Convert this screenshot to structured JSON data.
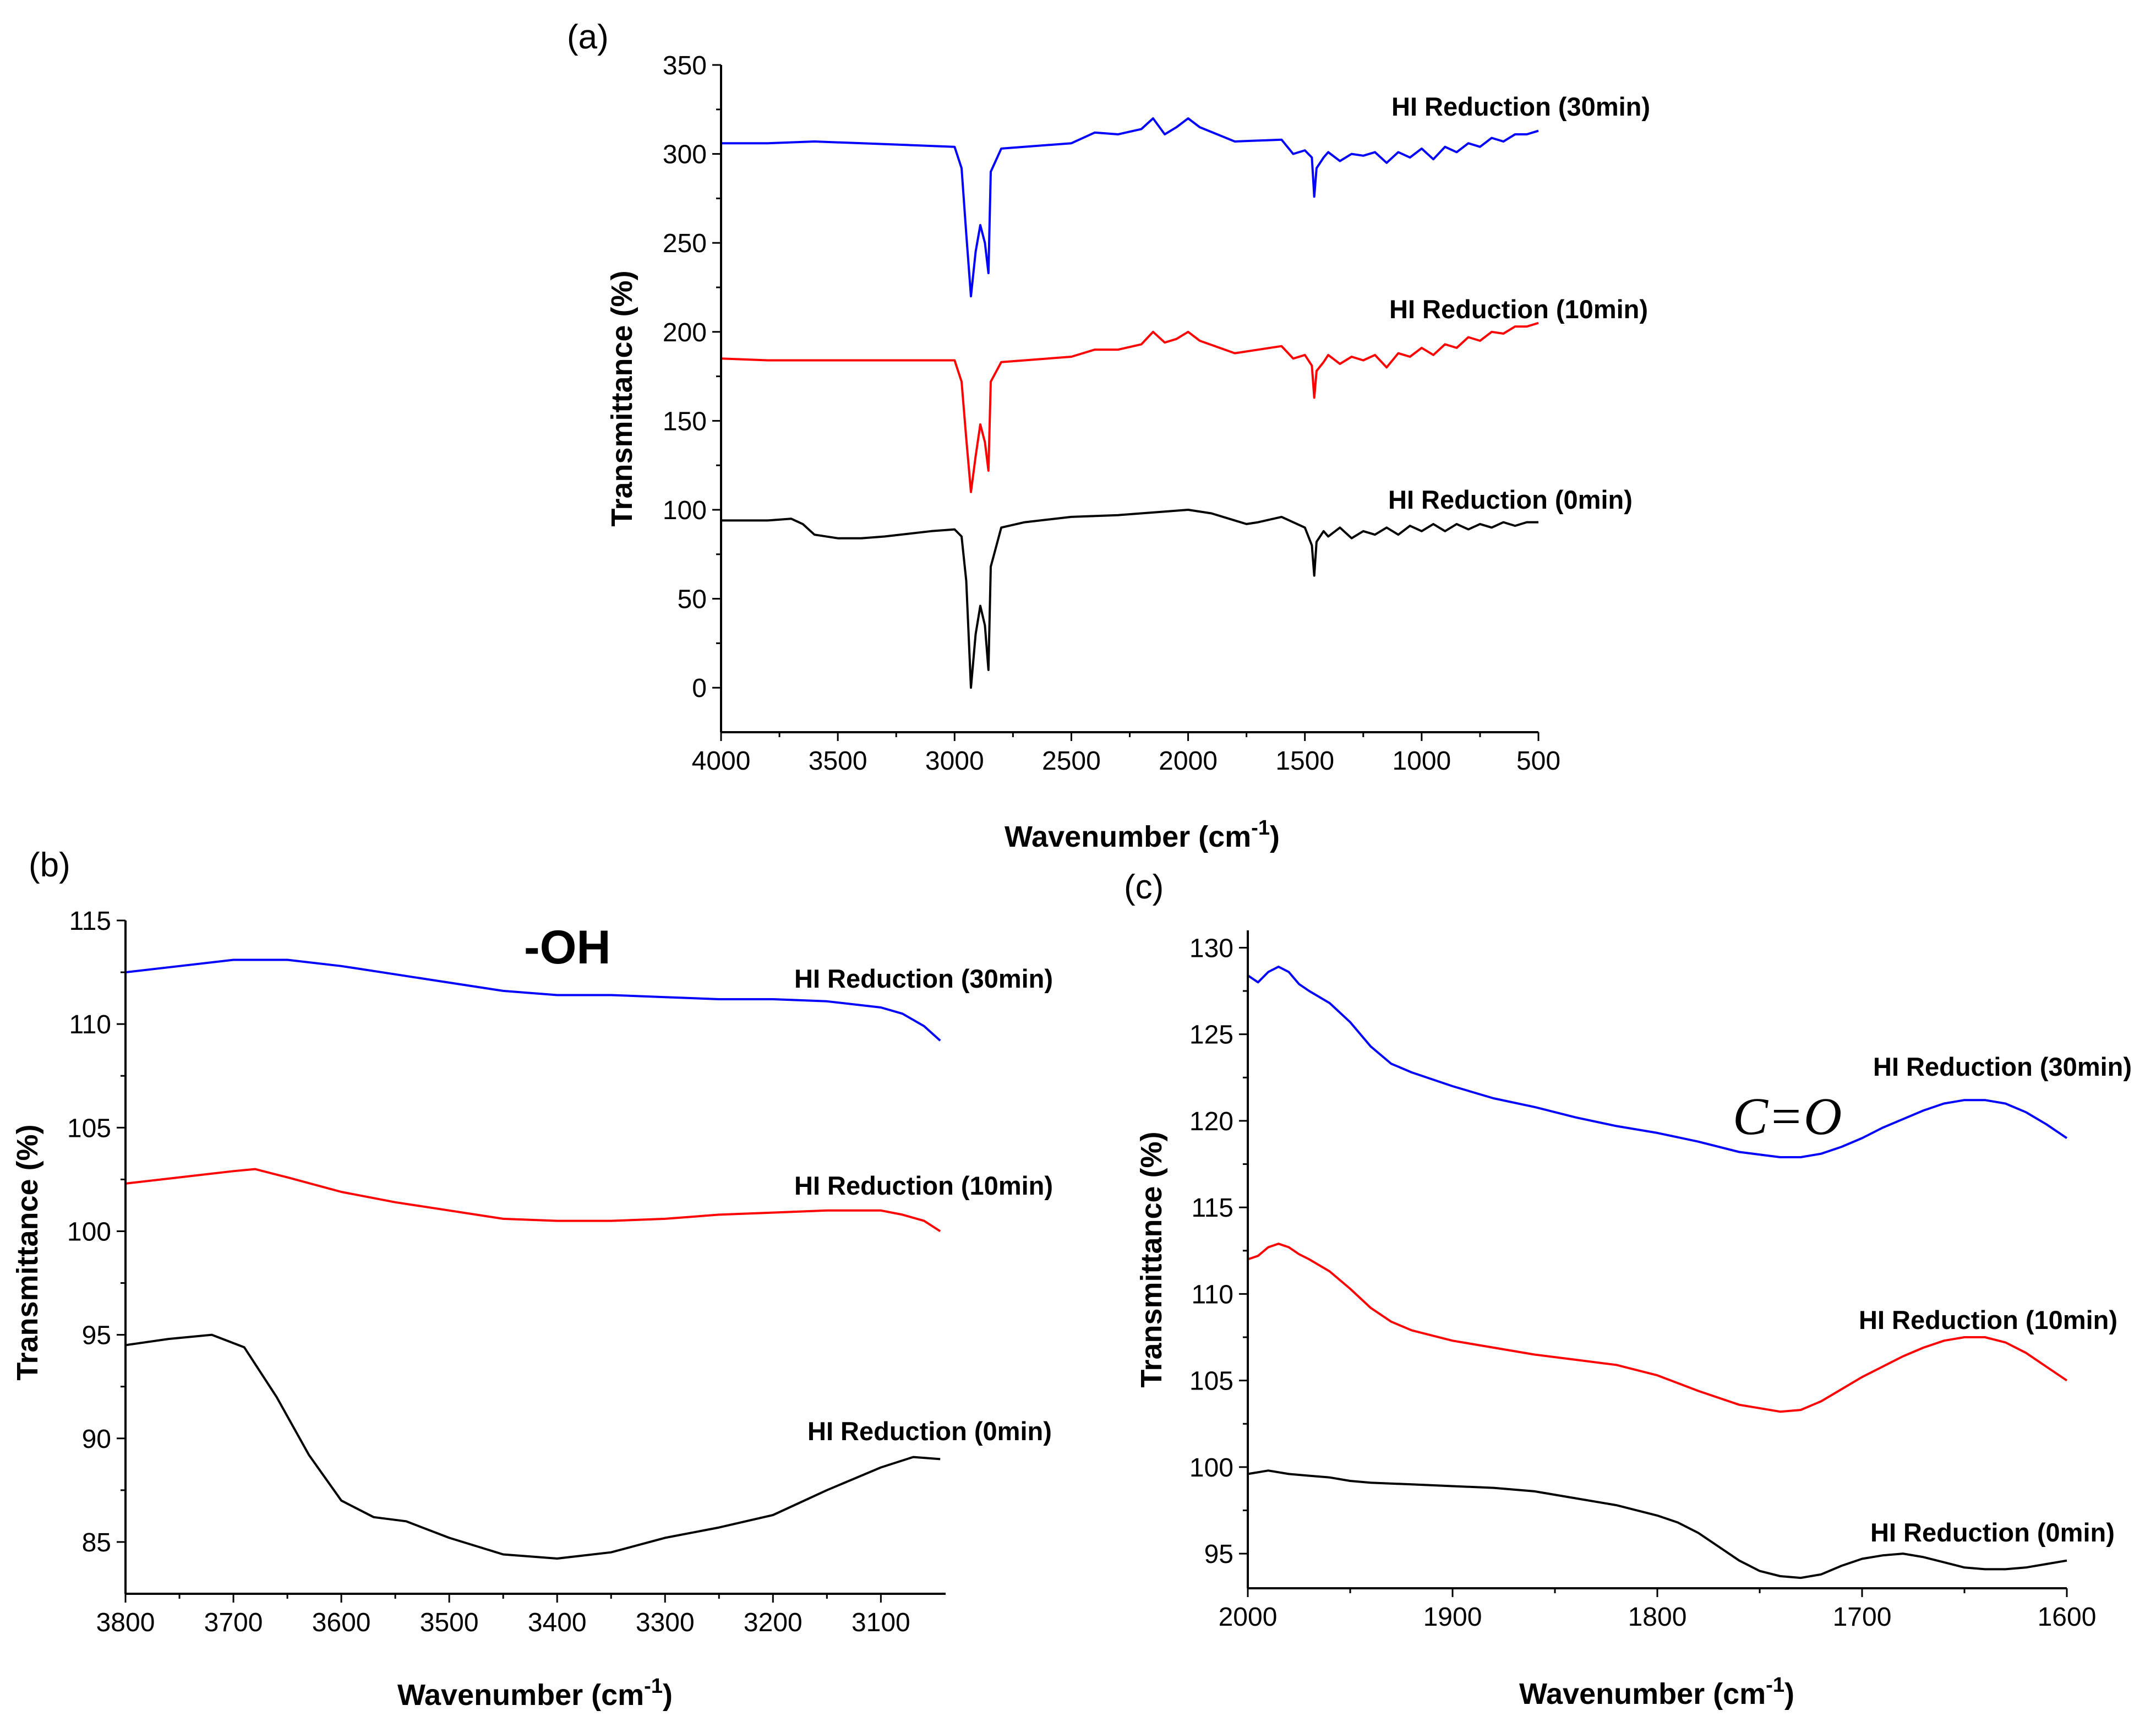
{
  "chart_data": [
    {
      "panel": "(a)",
      "type": "line",
      "xlabel": "Wavenumber (cm",
      "xlabel_sup": "-1",
      "xlabel_close": ")",
      "ylabel": "Transmittance (%)",
      "xlim": [
        4000,
        500
      ],
      "ylim": [
        -25,
        350
      ],
      "xticks": [
        4000,
        3500,
        3000,
        2500,
        2000,
        1500,
        1000,
        500
      ],
      "yticks": [
        0,
        50,
        100,
        150,
        200,
        250,
        300,
        350
      ],
      "series": [
        {
          "name": "HI Reduction (30min)",
          "color": "#0000ff",
          "x": [
            4000,
            3800,
            3600,
            3200,
            3000,
            2970,
            2950,
            2930,
            2910,
            2890,
            2870,
            2855,
            2845,
            2800,
            2500,
            2400,
            2300,
            2200,
            2150,
            2100,
            2050,
            2000,
            1950,
            1800,
            1600,
            1550,
            1500,
            1470,
            1460,
            1450,
            1420,
            1400,
            1350,
            1300,
            1250,
            1200,
            1150,
            1100,
            1050,
            1000,
            950,
            900,
            850,
            800,
            750,
            700,
            650,
            600,
            550,
            500
          ],
          "y": [
            306,
            306,
            307,
            305,
            304,
            292,
            255,
            220,
            245,
            260,
            250,
            233,
            290,
            303,
            306,
            312,
            311,
            314,
            320,
            311,
            315,
            320,
            315,
            307,
            308,
            300,
            302,
            298,
            276,
            292,
            298,
            301,
            296,
            300,
            299,
            301,
            295,
            301,
            298,
            303,
            297,
            304,
            301,
            306,
            304,
            309,
            307,
            311,
            311,
            313
          ]
        },
        {
          "name": "HI Reduction (10min)",
          "color": "#ff0000",
          "x": [
            4000,
            3800,
            3600,
            3200,
            3000,
            2970,
            2950,
            2930,
            2910,
            2890,
            2870,
            2855,
            2845,
            2800,
            2500,
            2400,
            2300,
            2200,
            2150,
            2100,
            2050,
            2000,
            1950,
            1800,
            1600,
            1550,
            1500,
            1470,
            1460,
            1450,
            1420,
            1400,
            1350,
            1300,
            1250,
            1200,
            1150,
            1100,
            1050,
            1000,
            950,
            900,
            850,
            800,
            750,
            700,
            650,
            600,
            550,
            500
          ],
          "y": [
            185,
            184,
            184,
            184,
            184,
            172,
            140,
            110,
            130,
            148,
            138,
            122,
            172,
            183,
            186,
            190,
            190,
            193,
            200,
            194,
            196,
            200,
            195,
            188,
            192,
            185,
            187,
            181,
            163,
            178,
            183,
            187,
            182,
            186,
            184,
            187,
            180,
            188,
            186,
            191,
            187,
            193,
            191,
            197,
            195,
            200,
            199,
            203,
            203,
            205
          ]
        },
        {
          "name": "HI Reduction (0min)",
          "color": "#000000",
          "x": [
            4000,
            3800,
            3700,
            3650,
            3600,
            3500,
            3400,
            3300,
            3100,
            3000,
            2970,
            2950,
            2930,
            2910,
            2890,
            2870,
            2855,
            2845,
            2800,
            2700,
            2500,
            2300,
            2100,
            2000,
            1900,
            1800,
            1750,
            1700,
            1600,
            1500,
            1470,
            1460,
            1450,
            1420,
            1400,
            1350,
            1300,
            1250,
            1200,
            1150,
            1100,
            1050,
            1000,
            950,
            900,
            850,
            800,
            750,
            700,
            650,
            600,
            550,
            500
          ],
          "y": [
            94,
            94,
            95,
            92,
            86,
            84,
            84,
            85,
            88,
            89,
            85,
            60,
            0,
            30,
            46,
            35,
            10,
            68,
            90,
            93,
            96,
            97,
            99,
            100,
            98,
            94,
            92,
            93,
            96,
            90,
            80,
            63,
            82,
            88,
            85,
            90,
            84,
            88,
            86,
            90,
            86,
            91,
            88,
            92,
            88,
            92,
            89,
            92,
            90,
            93,
            91,
            93,
            93
          ]
        }
      ],
      "labels": [
        "HI Reduction (30min)",
        "HI Reduction (10min)",
        "HI Reduction (0min)"
      ]
    },
    {
      "panel": "(b)",
      "type": "line",
      "annotation": "-OH",
      "xlabel": "Wavenumber (cm",
      "xlabel_sup": "-1",
      "xlabel_close": ")",
      "ylabel": "Transmittance (%)",
      "xlim": [
        3800,
        3040
      ],
      "ylim": [
        82.5,
        115
      ],
      "xticks": [
        3800,
        3700,
        3600,
        3500,
        3400,
        3300,
        3200,
        3100
      ],
      "yticks": [
        85,
        90,
        95,
        100,
        105,
        110,
        115
      ],
      "series": [
        {
          "name": "HI Reduction (30min)",
          "color": "#0000ff",
          "x": [
            3800,
            3750,
            3700,
            3650,
            3600,
            3550,
            3500,
            3450,
            3400,
            3350,
            3300,
            3250,
            3200,
            3150,
            3100,
            3080,
            3060,
            3045
          ],
          "y": [
            112.5,
            112.8,
            113.1,
            113.1,
            112.8,
            112.4,
            112.0,
            111.6,
            111.4,
            111.4,
            111.3,
            111.2,
            111.2,
            111.1,
            110.8,
            110.5,
            109.9,
            109.2
          ]
        },
        {
          "name": "HI Reduction (10min)",
          "color": "#ff0000",
          "x": [
            3800,
            3750,
            3700,
            3680,
            3650,
            3600,
            3550,
            3500,
            3450,
            3400,
            3350,
            3300,
            3250,
            3200,
            3150,
            3100,
            3080,
            3060,
            3045
          ],
          "y": [
            102.3,
            102.6,
            102.9,
            103.0,
            102.6,
            101.9,
            101.4,
            101.0,
            100.6,
            100.5,
            100.5,
            100.6,
            100.8,
            100.9,
            101.0,
            101.0,
            100.8,
            100.5,
            100.0
          ]
        },
        {
          "name": "HI Reduction (0min)",
          "color": "#000000",
          "x": [
            3800,
            3760,
            3720,
            3690,
            3660,
            3630,
            3600,
            3570,
            3540,
            3500,
            3450,
            3400,
            3350,
            3300,
            3250,
            3200,
            3150,
            3100,
            3070,
            3045
          ],
          "y": [
            94.5,
            94.8,
            95.0,
            94.4,
            92.0,
            89.2,
            87.0,
            86.2,
            86.0,
            85.2,
            84.4,
            84.2,
            84.5,
            85.2,
            85.7,
            86.3,
            87.5,
            88.6,
            89.1,
            89.0
          ]
        }
      ],
      "labels": [
        "HI Reduction (30min)",
        "HI Reduction (10min)",
        "HI Reduction (0min)"
      ]
    },
    {
      "panel": "(c)",
      "type": "line",
      "annotation": "C=O",
      "xlabel": "Wavenumber (cm",
      "xlabel_sup": "-1",
      "xlabel_close": ")",
      "ylabel": "Transmittance (%)",
      "xlim": [
        2000,
        1600
      ],
      "ylim": [
        93,
        131
      ],
      "xticks": [
        2000,
        1900,
        1800,
        1700,
        1600
      ],
      "yticks": [
        95,
        100,
        105,
        110,
        115,
        120,
        125,
        130
      ],
      "series": [
        {
          "name": "HI Reduction (30min)",
          "color": "#0000ff",
          "x": [
            2000,
            1995,
            1990,
            1985,
            1980,
            1975,
            1970,
            1960,
            1950,
            1940,
            1930,
            1920,
            1900,
            1880,
            1860,
            1840,
            1820,
            1800,
            1780,
            1760,
            1740,
            1730,
            1720,
            1710,
            1700,
            1690,
            1680,
            1670,
            1660,
            1650,
            1640,
            1630,
            1620,
            1610,
            1600
          ],
          "y": [
            128.4,
            128.0,
            128.6,
            128.9,
            128.6,
            127.9,
            127.5,
            126.8,
            125.7,
            124.3,
            123.3,
            122.8,
            122.0,
            121.3,
            120.8,
            120.2,
            119.7,
            119.3,
            118.8,
            118.2,
            117.9,
            117.9,
            118.1,
            118.5,
            119.0,
            119.6,
            120.1,
            120.6,
            121.0,
            121.2,
            121.2,
            121.0,
            120.5,
            119.8,
            119.0
          ]
        },
        {
          "name": "HI Reduction (10min)",
          "color": "#ff0000",
          "x": [
            2000,
            1995,
            1990,
            1985,
            1980,
            1975,
            1970,
            1960,
            1950,
            1940,
            1930,
            1920,
            1900,
            1880,
            1860,
            1840,
            1820,
            1800,
            1780,
            1760,
            1740,
            1730,
            1720,
            1710,
            1700,
            1690,
            1680,
            1670,
            1660,
            1650,
            1640,
            1630,
            1620,
            1610,
            1600
          ],
          "y": [
            112.0,
            112.2,
            112.7,
            112.9,
            112.7,
            112.3,
            112.0,
            111.3,
            110.3,
            109.2,
            108.4,
            107.9,
            107.3,
            106.9,
            106.5,
            106.2,
            105.9,
            105.3,
            104.4,
            103.6,
            103.2,
            103.3,
            103.8,
            104.5,
            105.2,
            105.8,
            106.4,
            106.9,
            107.3,
            107.5,
            107.5,
            107.2,
            106.6,
            105.8,
            105.0
          ]
        },
        {
          "name": "HI Reduction (0min)",
          "color": "#000000",
          "x": [
            2000,
            1990,
            1980,
            1970,
            1960,
            1950,
            1940,
            1920,
            1900,
            1880,
            1860,
            1840,
            1820,
            1800,
            1790,
            1780,
            1770,
            1760,
            1750,
            1740,
            1730,
            1720,
            1710,
            1700,
            1690,
            1680,
            1670,
            1660,
            1650,
            1640,
            1630,
            1620,
            1610,
            1600
          ],
          "y": [
            99.6,
            99.8,
            99.6,
            99.5,
            99.4,
            99.2,
            99.1,
            99.0,
            98.9,
            98.8,
            98.6,
            98.2,
            97.8,
            97.2,
            96.8,
            96.2,
            95.4,
            94.6,
            94.0,
            93.7,
            93.6,
            93.8,
            94.3,
            94.7,
            94.9,
            95.0,
            94.8,
            94.5,
            94.2,
            94.1,
            94.1,
            94.2,
            94.4,
            94.6
          ]
        }
      ],
      "labels": [
        "HI Reduction (30min)",
        "HI Reduction (10min)",
        "HI Reduction (0min)"
      ]
    }
  ]
}
